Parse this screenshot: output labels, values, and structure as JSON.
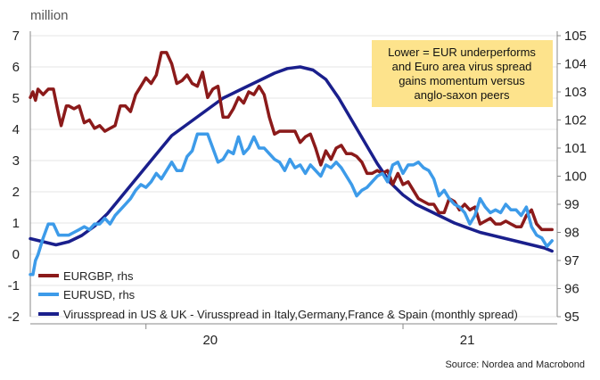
{
  "chart_data": {
    "type": "line",
    "unit_label": "million",
    "source": "Source: Nordea and Macrobond",
    "annotation": [
      "Lower = EUR underperforms",
      "and Euro area virus spread",
      "gains momentum versus",
      "anglo-saxon peers"
    ],
    "x_tick_labels": [
      "20",
      "21"
    ],
    "y_left": {
      "ticks": [
        "-2",
        "-1",
        "0",
        "1",
        "2",
        "3",
        "4",
        "5",
        "6",
        "7"
      ],
      "min": -2,
      "max": 7
    },
    "y_right": {
      "ticks": [
        "95",
        "96",
        "97",
        "98",
        "99",
        "100",
        "101",
        "102",
        "103",
        "104",
        "105"
      ],
      "min": 95,
      "max": 105
    },
    "x_range": [
      2019.55,
      2021.6
    ],
    "colors": {
      "EURGBP": "#8b1a1a",
      "EURUSD": "#3d9be9",
      "Virus": "#1a1f8c",
      "annotation_bg": "#fde38c"
    },
    "legend": [
      "EURGBP, rhs",
      "EURUSD, rhs",
      "Virusspread in US & UK - Virusspread in Italy,Germany,France & Spain (monthly spread)"
    ],
    "series": [
      {
        "name": "EURGBP, rhs",
        "axis": "right",
        "x": [
          2019.55,
          2019.56,
          2019.57,
          2019.58,
          2019.6,
          2019.62,
          2019.64,
          2019.66,
          2019.67,
          2019.69,
          2019.7,
          2019.72,
          2019.74,
          2019.76,
          2019.78,
          2019.8,
          2019.82,
          2019.84,
          2019.86,
          2019.88,
          2019.9,
          2019.92,
          2019.94,
          2019.96,
          2019.98,
          2020.0,
          2020.02,
          2020.04,
          2020.06,
          2020.08,
          2020.1,
          2020.12,
          2020.14,
          2020.16,
          2020.18,
          2020.2,
          2020.22,
          2020.24,
          2020.26,
          2020.28,
          2020.3,
          2020.32,
          2020.34,
          2020.36,
          2020.38,
          2020.4,
          2020.42,
          2020.44,
          2020.46,
          2020.48,
          2020.5,
          2020.52,
          2020.54,
          2020.56,
          2020.58,
          2020.6,
          2020.62,
          2020.64,
          2020.66,
          2020.68,
          2020.7,
          2020.72,
          2020.74,
          2020.76,
          2020.78,
          2020.8,
          2020.82,
          2020.84,
          2020.86,
          2020.88,
          2020.9,
          2020.92,
          2020.94,
          2020.96,
          2020.98,
          2021.0,
          2021.02,
          2021.04,
          2021.06,
          2021.08,
          2021.1,
          2021.12,
          2021.14,
          2021.16,
          2021.18,
          2021.2,
          2021.22,
          2021.24,
          2021.26,
          2021.28,
          2021.3,
          2021.32,
          2021.34,
          2021.36,
          2021.38,
          2021.4,
          2021.42,
          2021.44,
          2021.46,
          2021.48,
          2021.5,
          2021.52,
          2021.54,
          2021.56,
          2021.58
        ],
        "values": [
          102.8,
          103,
          102.7,
          103.1,
          102.9,
          103.1,
          103.1,
          102.2,
          101.8,
          102.5,
          102.5,
          102.4,
          102.5,
          101.9,
          102.0,
          101.7,
          101.8,
          101.6,
          101.7,
          101.8,
          102.5,
          102.5,
          102.3,
          102.9,
          103.2,
          103.5,
          103.3,
          103.6,
          104.4,
          104.4,
          104.0,
          103.3,
          103.4,
          103.6,
          103.3,
          103.2,
          103.7,
          102.8,
          103.1,
          103.2,
          102.1,
          102.1,
          102.4,
          102.8,
          102.6,
          103.0,
          102.9,
          103.2,
          102.9,
          102.1,
          101.5,
          101.6,
          101.6,
          101.6,
          101.6,
          101.2,
          101.4,
          101.5,
          101.0,
          100.4,
          100.9,
          100.6,
          101.0,
          101.1,
          100.8,
          100.8,
          100.7,
          100.5,
          100.1,
          100.1,
          100.2,
          100.1,
          100.2,
          99.7,
          100.1,
          99.7,
          99.8,
          99.5,
          99.2,
          99.1,
          99.0,
          99.0,
          98.7,
          98.7,
          99.2,
          99.1,
          98.8,
          99.0,
          98.8,
          98.9,
          98.3,
          98.4,
          98.5,
          98.3,
          98.3,
          98.4,
          98.3,
          98.2,
          98.2,
          98.6,
          98.8,
          98.3,
          98.1,
          98.1,
          98.1
        ]
      },
      {
        "name": "EURUSD, rhs",
        "axis": "right",
        "x": [
          2019.55,
          2019.56,
          2019.57,
          2019.58,
          2019.6,
          2019.62,
          2019.64,
          2019.66,
          2019.68,
          2019.7,
          2019.72,
          2019.74,
          2019.76,
          2019.78,
          2019.8,
          2019.82,
          2019.84,
          2019.86,
          2019.88,
          2019.9,
          2019.92,
          2019.94,
          2019.96,
          2019.98,
          2020.0,
          2020.02,
          2020.04,
          2020.06,
          2020.08,
          2020.1,
          2020.12,
          2020.14,
          2020.16,
          2020.18,
          2020.2,
          2020.22,
          2020.24,
          2020.26,
          2020.28,
          2020.3,
          2020.32,
          2020.34,
          2020.36,
          2020.38,
          2020.4,
          2020.42,
          2020.44,
          2020.46,
          2020.48,
          2020.5,
          2020.52,
          2020.54,
          2020.56,
          2020.58,
          2020.6,
          2020.62,
          2020.64,
          2020.66,
          2020.68,
          2020.7,
          2020.72,
          2020.74,
          2020.76,
          2020.78,
          2020.8,
          2020.82,
          2020.84,
          2020.86,
          2020.88,
          2020.9,
          2020.92,
          2020.94,
          2020.96,
          2020.98,
          2021.0,
          2021.02,
          2021.04,
          2021.06,
          2021.08,
          2021.1,
          2021.12,
          2021.14,
          2021.16,
          2021.18,
          2021.2,
          2021.22,
          2021.24,
          2021.26,
          2021.28,
          2021.3,
          2021.32,
          2021.34,
          2021.36,
          2021.38,
          2021.4,
          2021.42,
          2021.44,
          2021.46,
          2021.48,
          2021.5,
          2021.52,
          2021.54,
          2021.56,
          2021.58
        ],
        "values": [
          96.5,
          96.5,
          97.0,
          97.2,
          97.8,
          98.3,
          98.3,
          97.9,
          97.9,
          97.9,
          98.0,
          98.1,
          98.2,
          98.1,
          98.3,
          98.3,
          98.5,
          98.3,
          98.6,
          98.8,
          99.0,
          99.2,
          99.5,
          99.7,
          99.6,
          99.8,
          100.1,
          99.9,
          100.2,
          100.5,
          100.2,
          100.2,
          100.7,
          100.9,
          101.5,
          101.5,
          101.5,
          101.0,
          100.5,
          100.6,
          100.9,
          100.8,
          101.4,
          100.8,
          101.0,
          101.4,
          101.0,
          101.0,
          100.8,
          100.6,
          100.5,
          100.2,
          100.6,
          100.3,
          100.4,
          100.1,
          100.4,
          100.2,
          100.0,
          100.4,
          100.3,
          100.5,
          100.3,
          100.0,
          99.7,
          99.3,
          99.5,
          99.6,
          99.8,
          100.0,
          100.1,
          99.8,
          100.4,
          100.5,
          100.1,
          100.4,
          100.4,
          100.5,
          100.3,
          100.2,
          99.9,
          99.3,
          99.5,
          99.2,
          99.0,
          98.9,
          98.7,
          98.3,
          98.6,
          99.2,
          98.9,
          98.7,
          98.8,
          98.7,
          99.0,
          98.8,
          98.8,
          98.6,
          98.9,
          98.2,
          97.9,
          97.8,
          97.5,
          97.7
        ]
      },
      {
        "name": "Virusspread in US & UK - Virusspread in Italy,Germany,France & Spain (monthly spread)",
        "axis": "left",
        "x": [
          2019.55,
          2019.6,
          2019.65,
          2019.7,
          2019.75,
          2019.8,
          2019.85,
          2019.9,
          2019.95,
          2020.0,
          2020.05,
          2020.1,
          2020.15,
          2020.2,
          2020.25,
          2020.3,
          2020.35,
          2020.4,
          2020.45,
          2020.5,
          2020.55,
          2020.6,
          2020.65,
          2020.7,
          2020.75,
          2020.8,
          2020.85,
          2020.9,
          2020.95,
          2021.0,
          2021.05,
          2021.1,
          2021.15,
          2021.2,
          2021.25,
          2021.3,
          2021.35,
          2021.4,
          2021.45,
          2021.5,
          2021.55,
          2021.58
        ],
        "values": [
          0.5,
          0.4,
          0.3,
          0.4,
          0.6,
          0.9,
          1.3,
          1.8,
          2.3,
          2.8,
          3.3,
          3.8,
          4.1,
          4.4,
          4.7,
          5.0,
          5.2,
          5.4,
          5.6,
          5.8,
          5.95,
          6.0,
          5.9,
          5.6,
          5.0,
          4.3,
          3.6,
          2.9,
          2.3,
          1.9,
          1.6,
          1.4,
          1.2,
          1.0,
          0.85,
          0.7,
          0.6,
          0.5,
          0.4,
          0.3,
          0.2,
          0.1
        ]
      }
    ]
  }
}
